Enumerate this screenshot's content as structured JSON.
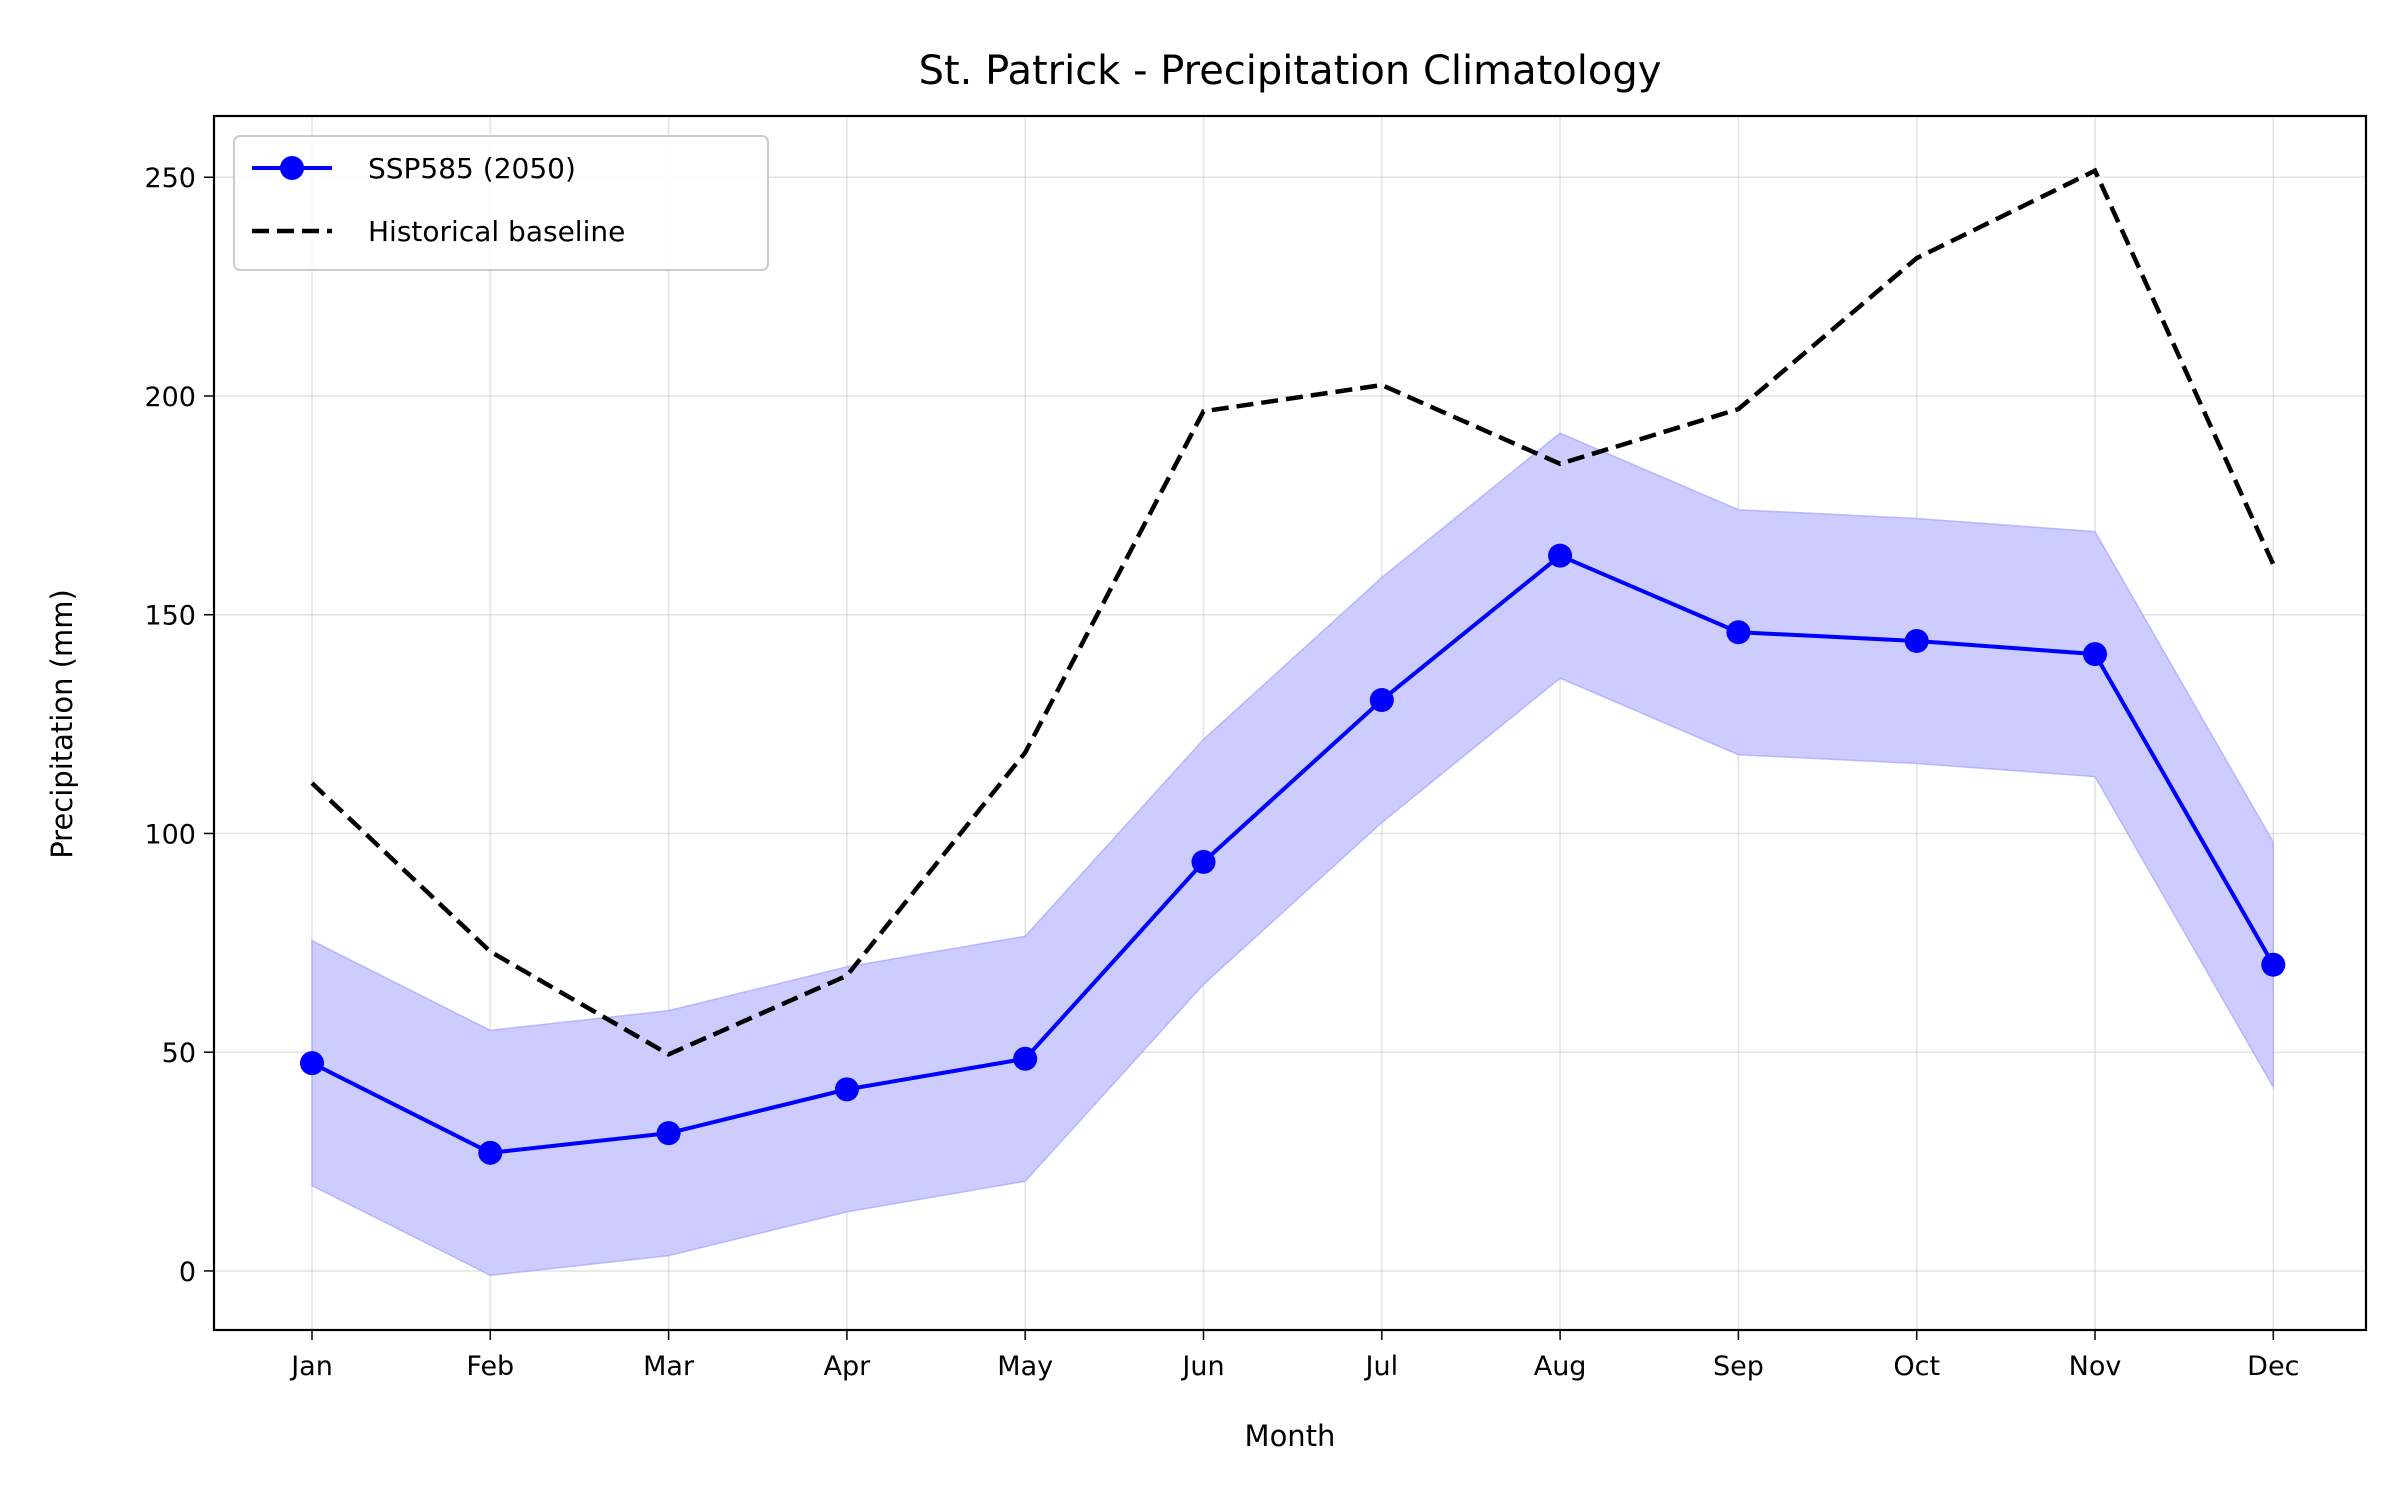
{
  "chart_data": {
    "type": "line",
    "title": "St. Patrick - Precipitation Climatology",
    "xlabel": "Month",
    "ylabel": "Precipitation (mm)",
    "categories": [
      "Jan",
      "Feb",
      "Mar",
      "Apr",
      "May",
      "Jun",
      "Jul",
      "Aug",
      "Sep",
      "Oct",
      "Nov",
      "Dec"
    ],
    "ylim": [
      -13.5,
      264
    ],
    "yticks": [
      0,
      50,
      100,
      150,
      200,
      250
    ],
    "grid": true,
    "legend_position": "top-left",
    "series": [
      {
        "name": "SSP585 (2050)",
        "style": "solid-marker",
        "color": "#0000ff",
        "values": [
          47.5,
          27,
          31.5,
          41.5,
          48.5,
          93.5,
          130.5,
          163.5,
          146,
          144,
          141,
          70
        ],
        "band_lower": [
          19.5,
          -1,
          3.5,
          13.5,
          20.5,
          65.5,
          102.5,
          135.5,
          118,
          116,
          113,
          42
        ],
        "band_upper": [
          75.5,
          55,
          59.5,
          69.5,
          76.5,
          121.5,
          158.5,
          191.5,
          174,
          172,
          169,
          98
        ],
        "band_color": "#ccccff"
      },
      {
        "name": "Historical baseline",
        "style": "dashed",
        "color": "#000000",
        "values": [
          111.5,
          73,
          49.5,
          67.5,
          118.5,
          196.5,
          202.5,
          184.5,
          197,
          231.5,
          251.5,
          161.5
        ]
      }
    ]
  }
}
